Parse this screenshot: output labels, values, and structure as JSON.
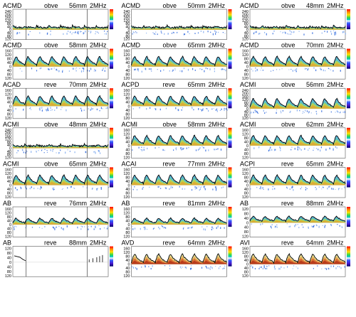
{
  "grid": {
    "columns": 3,
    "rows": 8
  },
  "colors": {
    "trace": "#000000",
    "spectrum": [
      "#1f3a9c",
      "#2c66c8",
      "#36a3d6",
      "#5cc6b0",
      "#8fd35f",
      "#cfd63a",
      "#e4a52e",
      "#d24a2a"
    ],
    "colorbar": [
      "#ff0000",
      "#ff8a00",
      "#ffe000",
      "#36d84a",
      "#00c6c6",
      "#ffffff",
      "#2d5cff",
      "#4a1ad1",
      "#000066"
    ]
  },
  "panels": [
    {
      "id": "p1",
      "name": "ACMD",
      "mode": "obve",
      "depth": "56mm",
      "freq": "2MHz",
      "ticks": [
        "240",
        "200",
        "160",
        "120",
        "80",
        "40",
        "0",
        "40",
        "80",
        "120"
      ],
      "style": "flat",
      "cursors": [
        0.14,
        0.78
      ]
    },
    {
      "id": "p2",
      "name": "ACMD",
      "mode": "obve",
      "depth": "50mm",
      "freq": "2MHz",
      "ticks": [
        "240",
        "200",
        "160",
        "120",
        "80",
        "40",
        "0",
        "40",
        "80",
        "120"
      ],
      "style": "flat",
      "cursors": []
    },
    {
      "id": "p3",
      "name": "ACMD",
      "mode": "obve",
      "depth": "48mm",
      "freq": "2MHz",
      "ticks": [
        "240",
        "200",
        "160",
        "120",
        "80",
        "40",
        "0",
        "40",
        "80",
        "120"
      ],
      "style": "flat",
      "cursors": []
    },
    {
      "id": "p4",
      "name": "ACMD",
      "mode": "obve",
      "depth": "58mm",
      "freq": "2MHz",
      "ticks": [
        "160",
        "120",
        "80",
        "40",
        "0",
        "40",
        "80",
        "120"
      ],
      "style": "pulse",
      "cursors": [
        0.14,
        0.78
      ]
    },
    {
      "id": "p5",
      "name": "ACMD",
      "mode": "obve",
      "depth": "65mm",
      "freq": "2MHz",
      "ticks": [
        "160",
        "120",
        "80",
        "40",
        "0",
        "40",
        "80",
        "120"
      ],
      "style": "pulse",
      "cursors": []
    },
    {
      "id": "p6",
      "name": "ACMD",
      "mode": "obve",
      "depth": "70mm",
      "freq": "2MHz",
      "ticks": [
        "160",
        "120",
        "80",
        "40",
        "0",
        "40",
        "80",
        "120"
      ],
      "style": "pulse",
      "cursors": []
    },
    {
      "id": "p7",
      "name": "ACAD",
      "mode": "reve",
      "depth": "70mm",
      "freq": "2MHz",
      "ticks": [
        "160",
        "120",
        "80",
        "40",
        "0",
        "40",
        "80",
        "120"
      ],
      "style": "pulse",
      "cursors": [
        0.14,
        0.78
      ]
    },
    {
      "id": "p8",
      "name": "ACPD",
      "mode": "reve",
      "depth": "65mm",
      "freq": "2MHz",
      "ticks": [
        "160",
        "120",
        "80",
        "40",
        "0",
        "40",
        "80",
        "120"
      ],
      "style": "pulse",
      "cursors": []
    },
    {
      "id": "p9",
      "name": "ACMI",
      "mode": "obve",
      "depth": "56mm",
      "freq": "2MHz",
      "ticks": [
        "240",
        "200",
        "160",
        "120",
        "80",
        "40",
        "0",
        "40",
        "80",
        "120"
      ],
      "style": "pulse",
      "cursors": []
    },
    {
      "id": "p10",
      "name": "ACMI",
      "mode": "obve",
      "depth": "48mm",
      "freq": "2MHz",
      "ticks": [
        "240",
        "200",
        "160",
        "120",
        "80",
        "40",
        "0",
        "40",
        "80",
        "120"
      ],
      "style": "flat",
      "cursors": [
        0.14,
        0.78
      ]
    },
    {
      "id": "p11",
      "name": "ACMI",
      "mode": "obve",
      "depth": "58mm",
      "freq": "2MHz",
      "ticks": [
        "160",
        "120",
        "80",
        "40",
        "0",
        "40",
        "80",
        "120"
      ],
      "style": "pulse",
      "cursors": []
    },
    {
      "id": "p12",
      "name": "ACMI",
      "mode": "obve",
      "depth": "62mm",
      "freq": "2MHz",
      "ticks": [
        "160",
        "120",
        "80",
        "40",
        "0",
        "40",
        "80",
        "120"
      ],
      "style": "pulse",
      "cursors": []
    },
    {
      "id": "p13",
      "name": "ACMI",
      "mode": "obve",
      "depth": "65mm",
      "freq": "2MHz",
      "ticks": [
        "160",
        "120",
        "80",
        "40",
        "0",
        "40",
        "80",
        "120"
      ],
      "style": "pulse",
      "cursors": [
        0.14,
        0.78
      ]
    },
    {
      "id": "p14",
      "name": "ACAI",
      "mode": "reve",
      "depth": "77mm",
      "freq": "2MHz",
      "ticks": [
        "160",
        "120",
        "80",
        "40",
        "0",
        "40",
        "80",
        "120"
      ],
      "style": "pulse",
      "cursors": []
    },
    {
      "id": "p15",
      "name": "ACPI",
      "mode": "reve",
      "depth": "65mm",
      "freq": "2MHz",
      "ticks": [
        "160",
        "120",
        "80",
        "40",
        "0",
        "40",
        "80",
        "120"
      ],
      "style": "pulse",
      "cursors": []
    },
    {
      "id": "p16",
      "name": "AB",
      "mode": "reve",
      "depth": "76mm",
      "freq": "2MHz",
      "ticks": [
        "160",
        "120",
        "80",
        "40",
        "0",
        "40",
        "80",
        "120"
      ],
      "style": "low",
      "cursors": [
        0.14,
        0.78
      ]
    },
    {
      "id": "p17",
      "name": "AB",
      "mode": "reve",
      "depth": "81mm",
      "freq": "2MHz",
      "ticks": [
        "160",
        "120",
        "80",
        "40",
        "0",
        "40",
        "80",
        "120"
      ],
      "style": "low",
      "cursors": []
    },
    {
      "id": "p18",
      "name": "AB",
      "mode": "reve",
      "depth": "88mm",
      "freq": "2MHz",
      "ticks": [
        "120",
        "80",
        "40",
        "0",
        "40",
        "80",
        "120"
      ],
      "style": "low",
      "cursors": []
    },
    {
      "id": "p19",
      "name": "AB",
      "mode": "reve",
      "depth": "88mm",
      "freq": "2MHz",
      "ticks": [
        "120",
        "80",
        "40",
        "0",
        "40",
        "80",
        "120"
      ],
      "style": "sparse",
      "cursors": [
        0.14,
        0.78
      ]
    },
    {
      "id": "p20",
      "name": "AVD",
      "mode": "reve",
      "depth": "64mm",
      "freq": "2MHz",
      "ticks": [
        "160",
        "120",
        "80",
        "40",
        "0",
        "40",
        "80",
        "120"
      ],
      "style": "red",
      "cursors": []
    },
    {
      "id": "p21",
      "name": "AVI",
      "mode": "reve",
      "depth": "64mm",
      "freq": "2MHz",
      "ticks": [
        "160",
        "120",
        "80",
        "40",
        "0",
        "40",
        "80",
        "120"
      ],
      "style": "red",
      "cursors": []
    }
  ]
}
